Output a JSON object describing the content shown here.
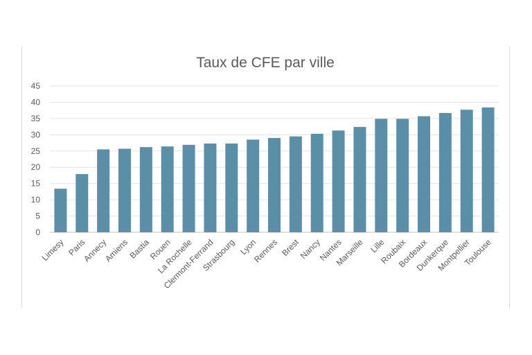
{
  "chart_data": {
    "type": "bar",
    "title": "Taux de CFE par ville",
    "xlabel": "",
    "ylabel": "",
    "ylim": [
      0,
      45
    ],
    "yticks": [
      0,
      5,
      10,
      15,
      20,
      25,
      30,
      35,
      40,
      45
    ],
    "grid": true,
    "legend": "none",
    "bar_color": "#5b8fa8",
    "categories": [
      "Limesy",
      "Paris",
      "Annecy",
      "Amiens",
      "Bastia",
      "Rouen",
      "La Rochelle",
      "Clermont-Ferrand",
      "Strasbourg",
      "Lyon",
      "Rennes",
      "Brest",
      "Nancy",
      "Nantes",
      "Marseille",
      "Lille",
      "Roubaix",
      "Bordeaux",
      "Dunkerque",
      "Montpellier",
      "Toulouse"
    ],
    "values": [
      13.4,
      17.9,
      25.5,
      25.7,
      26.2,
      26.4,
      26.9,
      27.3,
      27.3,
      28.5,
      29.0,
      29.5,
      30.3,
      31.3,
      32.4,
      34.9,
      34.9,
      35.7,
      36.7,
      37.7,
      38.4
    ]
  }
}
